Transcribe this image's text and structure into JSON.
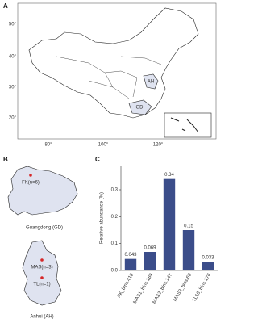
{
  "panels": {
    "a": {
      "label": "A",
      "lat_labels": [
        "50°",
        "40°",
        "30°",
        "20°"
      ],
      "lon_labels": [
        "80°",
        "100°",
        "120°"
      ],
      "provinces": [
        "AH",
        "GD"
      ]
    },
    "b": {
      "label": "B",
      "gd_site": "FK(n=6)",
      "gd_caption": "Guangdong (GD)",
      "ah_sites": [
        "MAS(n=3)",
        "TL(n=1)"
      ],
      "ah_caption": "Anhui (AH)"
    },
    "c": {
      "label": "C"
    }
  },
  "chart_data": {
    "type": "bar",
    "y_label": "Relative abundance (%)",
    "categories": [
      "FK_bins.410",
      "MAS1_bins.189",
      "MAS2_bins.147",
      "MAS2_bins.60",
      "TL16_bins.176"
    ],
    "values": [
      0.043,
      0.069,
      0.34,
      0.15,
      0.033
    ],
    "color": "#3b4d8a",
    "ylim": [
      0,
      0.39
    ],
    "yticks": [
      {
        "value": 0,
        "label": "0.0"
      },
      0.1,
      0.2,
      0.3
    ]
  }
}
